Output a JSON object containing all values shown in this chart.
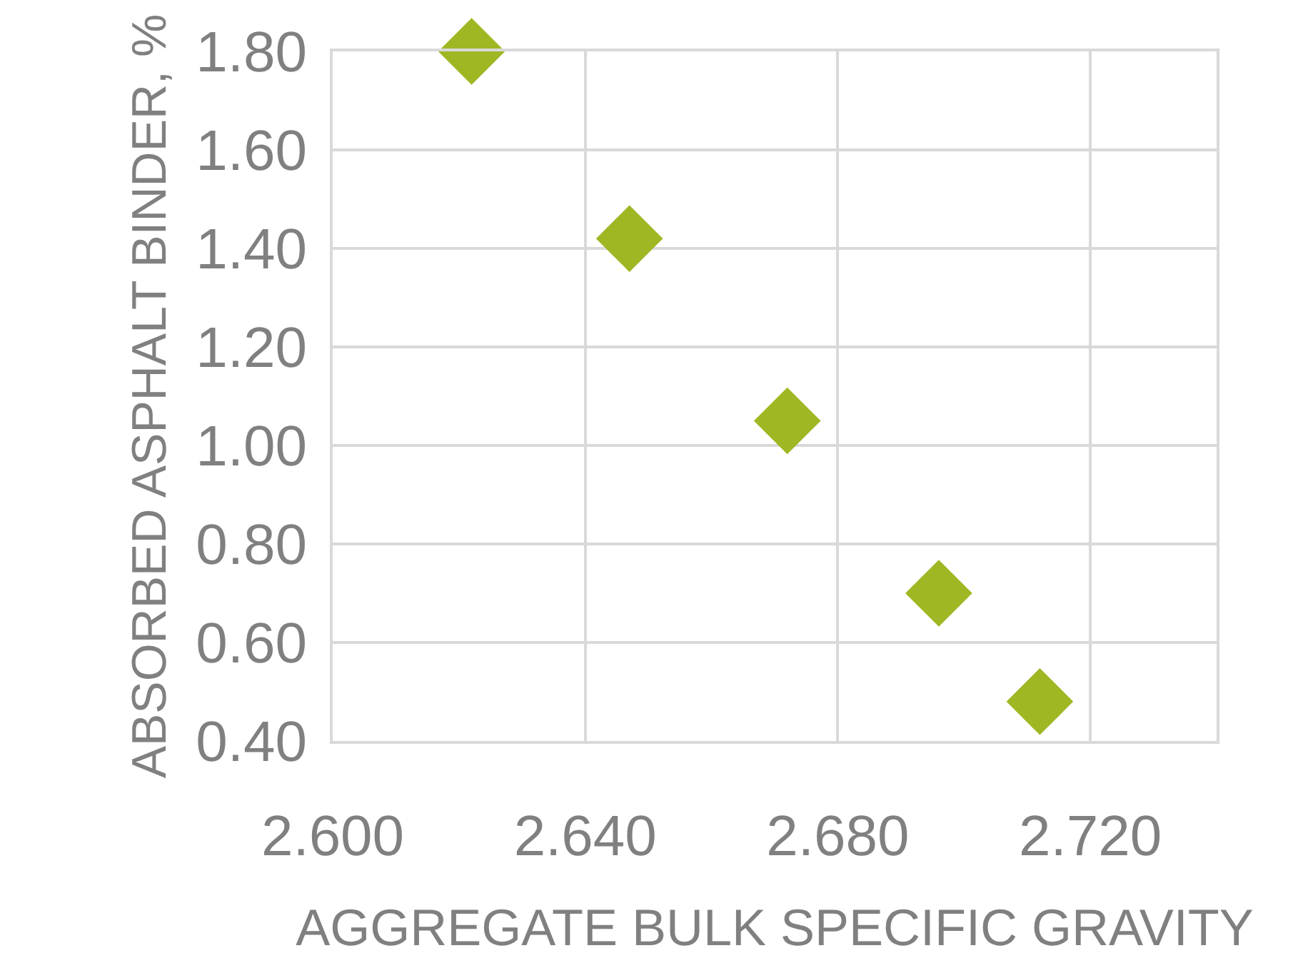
{
  "chart_data": {
    "type": "scatter",
    "xlabel": "AGGREGATE BULK SPECIFIC GRAVITY",
    "ylabel": "ABSORBED ASPHALT BINDER, %",
    "x": [
      2.622,
      2.647,
      2.672,
      2.696,
      2.712
    ],
    "series": [
      {
        "color": "#9fb723",
        "values": [
          1.8,
          1.42,
          1.05,
          0.7,
          0.48
        ]
      }
    ],
    "xlim": [
      2.6,
      2.74
    ],
    "xticks": [
      {
        "value": 2.6,
        "label": "2.600"
      },
      {
        "value": 2.64,
        "label": "2.640"
      },
      {
        "value": 2.68,
        "label": "2.680"
      },
      {
        "value": 2.72,
        "label": "2.720"
      }
    ],
    "ylim": [
      0.4,
      1.8
    ],
    "yticks": [
      {
        "value": 0.4,
        "label": "0.40"
      },
      {
        "value": 0.6,
        "label": "0.60"
      },
      {
        "value": 0.8,
        "label": "0.80"
      },
      {
        "value": 1.0,
        "label": "1.00"
      },
      {
        "value": 1.2,
        "label": "1.20"
      },
      {
        "value": 1.4,
        "label": "1.40"
      },
      {
        "value": 1.6,
        "label": "1.60"
      },
      {
        "value": 1.8,
        "label": "1.80"
      }
    ],
    "grid": true,
    "marker": "diamond",
    "legend": false
  }
}
